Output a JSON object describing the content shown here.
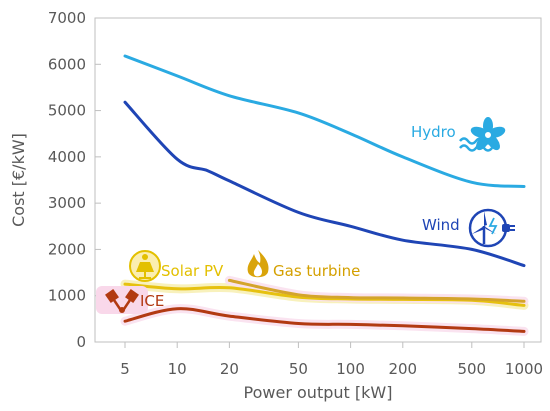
{
  "chart_data": {
    "type": "line",
    "xlabel": "Power output [kW]",
    "ylabel": "Cost [€/kW]",
    "x_scale": "log",
    "x_ticks": [
      5,
      10,
      20,
      50,
      100,
      200,
      500,
      1000
    ],
    "x_tick_labels": [
      "5",
      "10",
      "20",
      "50",
      "100",
      "200",
      "500",
      "1000"
    ],
    "ylim": [
      0,
      7000
    ],
    "y_ticks": [
      0,
      1000,
      2000,
      3000,
      4000,
      5000,
      6000,
      7000
    ],
    "grid": false,
    "legend": "inline labels with icons",
    "series": [
      {
        "name": "Hydro",
        "color": "#2aaae2",
        "label_color": "#2aaae2",
        "icon": "turbine-wave-icon",
        "x": [
          5,
          10,
          20,
          50,
          100,
          200,
          500,
          1000
        ],
        "y": [
          6180,
          5750,
          5320,
          4950,
          4500,
          4000,
          3450,
          3360
        ]
      },
      {
        "name": "Wind",
        "color": "#1f45b5",
        "label_color": "#1f45b5",
        "icon": "wind-turbine-plug-icon",
        "x": [
          5,
          10,
          15,
          20,
          50,
          100,
          200,
          500,
          1000
        ],
        "y": [
          5180,
          3950,
          3700,
          3480,
          2800,
          2500,
          2200,
          2000,
          1650
        ]
      },
      {
        "name": "Solar PV",
        "color": "#e6c10f",
        "label_color": "#e3c000",
        "icon": "solar-panel-icon",
        "x": [
          5,
          10,
          20,
          50,
          100,
          200,
          500,
          1000
        ],
        "y": [
          1250,
          1150,
          1170,
          970,
          930,
          920,
          900,
          790
        ]
      },
      {
        "name": "Gas turbine",
        "color": "#d4a42c",
        "label_color": "#d4a000",
        "icon": "flame-icon",
        "x": [
          20,
          50,
          100,
          200,
          500,
          1000
        ],
        "y": [
          1330,
          1020,
          960,
          950,
          930,
          880
        ]
      },
      {
        "name": "ICE",
        "color": "#b23a12",
        "label_color": "#b23a12",
        "icon": "pistons-icon",
        "x": [
          5,
          10,
          20,
          50,
          100,
          200,
          500,
          1000
        ],
        "y": [
          450,
          720,
          560,
          400,
          380,
          350,
          290,
          230
        ]
      }
    ]
  }
}
